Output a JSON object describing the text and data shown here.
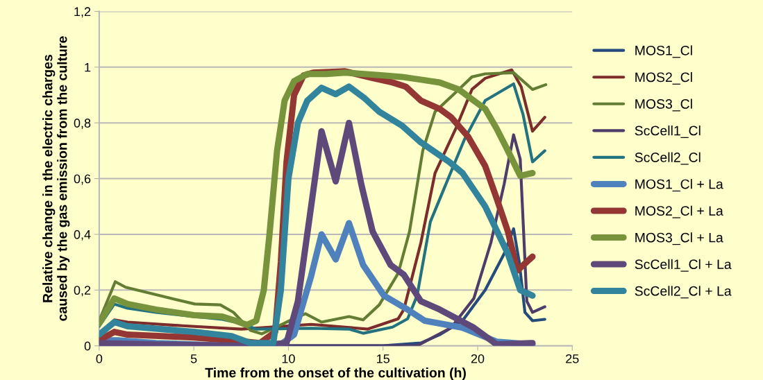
{
  "chart_data": {
    "type": "line",
    "xlabel": "Time from the onset of the cultivation (h)",
    "ylabel": "Relative change in the electric charges\ncaused by the gas emission from the culture",
    "xlim": [
      0,
      25
    ],
    "xticks": [
      0,
      5,
      10,
      15,
      20,
      25
    ],
    "ylim": [
      0,
      1.2
    ],
    "yticks": [
      0,
      {
        "value": 0.2,
        "label": "0,2"
      },
      {
        "value": 0.4,
        "label": "0,4"
      },
      {
        "value": 0.6,
        "label": "0,6"
      },
      {
        "value": 0.8,
        "label": "0,8"
      },
      1,
      {
        "value": 1.2,
        "label": "1,2"
      }
    ],
    "grid": "y",
    "legend": "right",
    "marker": "none",
    "line_style": "solid",
    "series": [
      {
        "name": "MOS1_Cl",
        "color": "#254b7c",
        "x": [
          0,
          1,
          3,
          8,
          15,
          17,
          18,
          19.2,
          20.4,
          21.4,
          21.9,
          22.2,
          22.5,
          22.9,
          23.55
        ],
        "values": [
          0.02,
          0.01,
          0.005,
          0,
          0,
          0.01,
          0.04,
          0.09,
          0.2,
          0.33,
          0.42,
          0.3,
          0.12,
          0.09,
          0.095
        ]
      },
      {
        "name": "MOS2_Cl",
        "color": "#7b2c2b",
        "x": [
          0,
          0.8,
          1.5,
          4.4,
          7.5,
          8.6,
          11.2,
          14.2,
          15.8,
          16.1,
          17,
          17.75,
          18.85,
          19.7,
          20.4,
          21.8,
          22.3,
          22.9,
          23.55
        ],
        "values": [
          0.03,
          0.093,
          0.085,
          0.072,
          0.06,
          0.065,
          0.077,
          0.06,
          0.097,
          0.13,
          0.37,
          0.62,
          0.78,
          0.92,
          0.96,
          0.99,
          0.93,
          0.77,
          0.82
        ]
      },
      {
        "name": "MOS3_Cl",
        "color": "#637d33",
        "x": [
          0,
          0.85,
          1.4,
          3.2,
          5.05,
          6.4,
          7.1,
          8,
          8.6,
          9.9,
          10.9,
          11.75,
          13.2,
          13.95,
          14.8,
          15.8,
          16.4,
          17.1,
          17.75,
          18.85,
          19.7,
          20.4,
          21.9,
          22.9,
          23.6
        ],
        "values": [
          0.09,
          0.23,
          0.21,
          0.18,
          0.15,
          0.147,
          0.12,
          0.055,
          0.043,
          0.085,
          0.115,
          0.085,
          0.105,
          0.093,
          0.147,
          0.26,
          0.41,
          0.7,
          0.84,
          0.91,
          0.965,
          0.976,
          0.98,
          0.92,
          0.937
        ]
      },
      {
        "name": "ScCell1_Cl",
        "color": "#4e3d6b",
        "x": [
          0,
          5,
          10,
          16.8,
          18.6,
          19.8,
          20.7,
          21.4,
          21.9,
          22.25,
          22.6,
          22.9,
          23.55
        ],
        "values": [
          0.005,
          0,
          0,
          0,
          0.065,
          0.17,
          0.37,
          0.58,
          0.757,
          0.67,
          0.16,
          0.12,
          0.14
        ]
      },
      {
        "name": "ScCell2_Cl",
        "color": "#22727f",
        "x": [
          0,
          0.8,
          1.5,
          3,
          5,
          6.5,
          7.5,
          8.3,
          11.2,
          13.2,
          13.95,
          15.5,
          16.3,
          16.8,
          17.5,
          18.2,
          19.3,
          20.4,
          21.9,
          22.4,
          22.9,
          23.55
        ],
        "values": [
          0.07,
          0.15,
          0.135,
          0.12,
          0.105,
          0.095,
          0.08,
          0.06,
          0.063,
          0.06,
          0.045,
          0.067,
          0.097,
          0.18,
          0.445,
          0.56,
          0.74,
          0.88,
          0.94,
          0.83,
          0.66,
          0.7
        ]
      },
      {
        "name": "MOS1_Cl + La",
        "color": "#4f81bd",
        "x": [
          0,
          1,
          3,
          7,
          9.5,
          10.3,
          11.2,
          11.75,
          12.5,
          13.2,
          13.95,
          15.05,
          16.3,
          17.2,
          19.2,
          21,
          22.9
        ],
        "values": [
          0.02,
          0.02,
          0.01,
          0,
          0,
          0.04,
          0.25,
          0.4,
          0.31,
          0.44,
          0.29,
          0.18,
          0.13,
          0.09,
          0.065,
          0.015,
          0.005
        ]
      },
      {
        "name": "MOS2_Cl + La",
        "color": "#943634",
        "x": [
          0,
          0.8,
          1.5,
          5,
          7,
          8.5,
          9.3,
          9.6,
          9.9,
          10.3,
          10.8,
          11.3,
          13,
          14.5,
          15.5,
          16.2,
          17,
          18,
          18.6,
          19.5,
          20.4,
          21,
          21.6,
          22.1,
          22.9
        ],
        "values": [
          0.02,
          0.05,
          0.04,
          0.03,
          0.02,
          0.01,
          0.05,
          0.3,
          0.66,
          0.9,
          0.97,
          0.98,
          0.985,
          0.96,
          0.945,
          0.93,
          0.88,
          0.85,
          0.82,
          0.75,
          0.645,
          0.53,
          0.41,
          0.27,
          0.32
        ]
      },
      {
        "name": "MOS3_Cl + La",
        "color": "#77933c",
        "x": [
          0,
          0.8,
          1.5,
          3,
          5,
          6.5,
          7.2,
          7.8,
          8.3,
          8.7,
          9,
          9.4,
          9.8,
          10.3,
          11,
          12,
          13,
          14,
          15,
          16,
          17,
          18,
          19,
          19.7,
          20.4,
          21,
          21.6,
          22.25,
          22.9
        ],
        "values": [
          0.08,
          0.17,
          0.15,
          0.13,
          0.11,
          0.105,
          0.09,
          0.075,
          0.09,
          0.2,
          0.4,
          0.7,
          0.88,
          0.95,
          0.975,
          0.975,
          0.98,
          0.975,
          0.97,
          0.965,
          0.955,
          0.945,
          0.92,
          0.885,
          0.85,
          0.78,
          0.7,
          0.61,
          0.62
        ]
      },
      {
        "name": "ScCell1_Cl + La",
        "color": "#5f497a",
        "x": [
          0,
          3,
          8,
          9.9,
          10.5,
          11.2,
          11.75,
          12.5,
          13.2,
          13.85,
          14.45,
          15.4,
          16.1,
          17,
          18,
          19.8,
          21,
          22.9
        ],
        "values": [
          0.01,
          0.005,
          0,
          0.01,
          0.16,
          0.5,
          0.77,
          0.59,
          0.8,
          0.58,
          0.41,
          0.29,
          0.255,
          0.16,
          0.13,
          0.065,
          0.005,
          0.01
        ]
      },
      {
        "name": "ScCell2_Cl + La",
        "color": "#31849b",
        "x": [
          0,
          0.8,
          1.5,
          5,
          7,
          8,
          9.2,
          9.6,
          10,
          10.5,
          11,
          11.75,
          12.5,
          13.2,
          14,
          14.8,
          16,
          17,
          18.5,
          19.2,
          20.4,
          21.6,
          22.25,
          22.9
        ],
        "values": [
          0.04,
          0.085,
          0.07,
          0.05,
          0.035,
          0.01,
          0.01,
          0.2,
          0.6,
          0.8,
          0.88,
          0.926,
          0.903,
          0.93,
          0.89,
          0.84,
          0.79,
          0.73,
          0.66,
          0.62,
          0.5,
          0.33,
          0.2,
          0.18
        ]
      }
    ]
  }
}
